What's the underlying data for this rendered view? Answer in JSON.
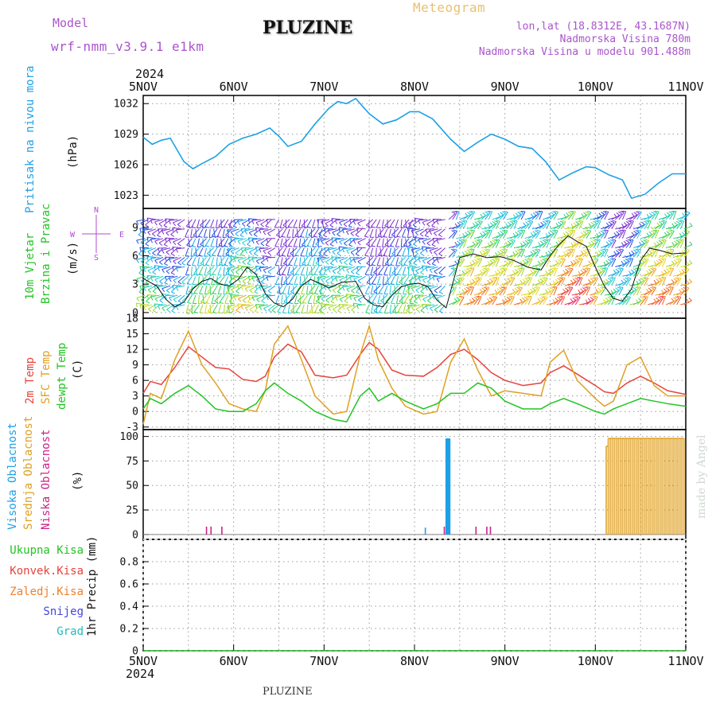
{
  "header": {
    "model_label": "Model",
    "model_name": "wrf-nmm_v3.9.1 e1km",
    "title": "PLUZINE",
    "subtitle": "Meteogram",
    "coords": "lon,lat (18.8312E, 43.1687N)",
    "elevation": "Nadmorska Visina 780m",
    "model_elevation": "Nadmorska Visina u modelu 901.488m",
    "footer_title": "PLUZINE",
    "watermark": "made by Angel",
    "year": "2024"
  },
  "colors": {
    "pressure": "#1ea0e6",
    "temp2m": "#e8433c",
    "sfc_temp": "#e0a020",
    "dewpt": "#22c422",
    "high_cloud": "#1ea0e6",
    "mid_cloud": "#e0a020",
    "low_cloud": "#cc2288",
    "snow": "#4444dd",
    "grad": "#22bbbb",
    "axis": "#000000"
  },
  "chart_data": [
    {
      "panel": "pressure",
      "type": "line",
      "ylabel": [
        "Pritisak na nivou mora",
        "(hPa)"
      ],
      "yticks": [
        1023,
        1026,
        1029,
        1032
      ],
      "ylim": [
        1021.7,
        1032.8
      ],
      "x_days": [
        0,
        0.1,
        0.2,
        0.3,
        0.45,
        0.55,
        0.65,
        0.8,
        0.95,
        1.1,
        1.25,
        1.4,
        1.5,
        1.6,
        1.75,
        1.9,
        2.05,
        2.15,
        2.25,
        2.35,
        2.5,
        2.65,
        2.8,
        2.95,
        3.05,
        3.2,
        3.4,
        3.55,
        3.7,
        3.85,
        4.0,
        4.15,
        4.3,
        4.45,
        4.6,
        4.75,
        4.9,
        5.0,
        5.15,
        5.3,
        5.4,
        5.55,
        5.7,
        5.85,
        6.0
      ],
      "values": [
        1028.7,
        1028.0,
        1028.4,
        1028.6,
        1026.3,
        1025.6,
        1026.1,
        1026.8,
        1028.0,
        1028.6,
        1029.0,
        1029.6,
        1028.8,
        1027.8,
        1028.3,
        1030.0,
        1031.5,
        1032.2,
        1032.0,
        1032.5,
        1031.0,
        1030.0,
        1030.4,
        1031.2,
        1031.2,
        1030.5,
        1028.5,
        1027.3,
        1028.2,
        1029.0,
        1028.5,
        1027.8,
        1027.6,
        1026.3,
        1024.5,
        1025.2,
        1025.8,
        1025.7,
        1025.0,
        1024.5,
        1022.7,
        1023.1,
        1024.2,
        1025.1,
        1025.1
      ]
    },
    {
      "panel": "wind",
      "type": "line",
      "ylabel": [
        "10m Vjetar",
        "Brzina i Pravac",
        "(m/s)"
      ],
      "compass": [
        "N",
        "W",
        "E",
        "S"
      ],
      "yticks": [
        0,
        3,
        6,
        9
      ],
      "ylim": [
        -0.6,
        11
      ],
      "x_days": [
        0,
        0.15,
        0.25,
        0.35,
        0.45,
        0.55,
        0.65,
        0.75,
        0.85,
        0.95,
        1.05,
        1.15,
        1.25,
        1.35,
        1.45,
        1.55,
        1.65,
        1.75,
        1.85,
        1.95,
        2.05,
        2.2,
        2.35,
        2.45,
        2.55,
        2.65,
        2.75,
        2.85,
        2.95,
        3.05,
        3.15,
        3.25,
        3.35,
        3.5,
        3.65,
        3.8,
        3.95,
        4.1,
        4.25,
        4.4,
        4.5,
        4.6,
        4.7,
        4.8,
        4.9,
        5.0,
        5.1,
        5.2,
        5.3,
        5.4,
        5.5,
        5.6,
        5.7,
        5.85,
        6.0
      ],
      "values": [
        3.6,
        2.8,
        1.4,
        0.6,
        1.1,
        2.5,
        3.3,
        3.6,
        3.0,
        2.8,
        3.5,
        4.8,
        4.0,
        2.0,
        1.0,
        0.6,
        1.4,
        2.8,
        3.5,
        3.1,
        2.6,
        3.2,
        3.3,
        1.5,
        0.8,
        0.6,
        1.8,
        2.7,
        3.0,
        3.1,
        2.7,
        1.3,
        0.5,
        5.8,
        6.2,
        5.8,
        5.9,
        5.5,
        4.8,
        4.5,
        6.0,
        7.2,
        8.1,
        7.5,
        7.0,
        4.8,
        2.8,
        1.5,
        1.2,
        2.5,
        5.5,
        6.8,
        6.6,
        6.2,
        6.3
      ]
    },
    {
      "panel": "temperature",
      "type": "line",
      "ylabel": [
        "2m Temp",
        "SFC Temp",
        "dewpt Temp",
        "(C)"
      ],
      "yticks": [
        -3,
        0,
        3,
        6,
        9,
        12,
        15,
        18
      ],
      "ylim": [
        -3.5,
        18
      ],
      "x_days": [
        0,
        0.08,
        0.2,
        0.35,
        0.5,
        0.65,
        0.8,
        0.95,
        1.1,
        1.25,
        1.35,
        1.45,
        1.6,
        1.75,
        1.9,
        2.1,
        2.25,
        2.4,
        2.5,
        2.6,
        2.75,
        2.9,
        3.1,
        3.25,
        3.4,
        3.55,
        3.7,
        3.85,
        4.0,
        4.2,
        4.4,
        4.5,
        4.65,
        4.8,
        5.0,
        5.1,
        5.2,
        5.35,
        5.5,
        5.65,
        5.8,
        6.0
      ],
      "series": [
        {
          "name": "2m Temp",
          "key": "temp2m",
          "values": [
            3.5,
            5.8,
            5.2,
            8.5,
            12.5,
            10.5,
            8.5,
            8.2,
            6.2,
            5.8,
            6.8,
            10.5,
            13.0,
            11.5,
            7.0,
            6.5,
            7.0,
            11.0,
            13.3,
            12.0,
            8.0,
            7.0,
            6.8,
            8.5,
            11.0,
            12.0,
            10.0,
            7.5,
            6.0,
            5.0,
            5.5,
            7.5,
            8.8,
            7.2,
            5.0,
            3.8,
            3.5,
            5.5,
            6.8,
            5.5,
            4.0,
            3.3
          ]
        },
        {
          "name": "SFC Temp",
          "key": "sfc_temp",
          "values": [
            -2.5,
            3.5,
            2.5,
            10.0,
            15.5,
            9.0,
            5.5,
            1.5,
            0.5,
            0.0,
            4.0,
            13.0,
            16.5,
            10.0,
            3.0,
            -0.5,
            0.0,
            11.0,
            16.5,
            10.0,
            4.5,
            1.0,
            -0.5,
            0.0,
            9.5,
            14.0,
            8.0,
            3.0,
            4.0,
            3.5,
            3.0,
            9.5,
            11.8,
            6.0,
            2.5,
            1.0,
            2.0,
            9.0,
            10.5,
            5.0,
            3.0,
            3.0
          ]
        },
        {
          "name": "dewpt Temp",
          "key": "dewpt",
          "values": [
            0.5,
            2.5,
            1.5,
            3.5,
            5.0,
            3.0,
            0.5,
            0.0,
            0.0,
            1.5,
            4.0,
            5.5,
            3.5,
            2.0,
            0.0,
            -1.5,
            -2.0,
            3.0,
            4.5,
            2.0,
            3.5,
            2.0,
            0.5,
            1.5,
            3.5,
            3.5,
            5.5,
            4.5,
            2.0,
            0.5,
            0.5,
            1.5,
            2.5,
            1.5,
            0.0,
            -0.5,
            0.5,
            1.5,
            2.5,
            2.0,
            1.5,
            1.0
          ]
        }
      ]
    },
    {
      "panel": "clouds",
      "type": "bar",
      "ylabel": [
        "Visoka Oblacnost",
        "Srednja Oblacnost",
        "Niska Oblacnost",
        "(%)"
      ],
      "yticks": [
        0,
        25,
        50,
        75,
        100
      ],
      "ylim": [
        -5,
        107
      ],
      "series": [
        {
          "name": "Visoka Oblacnost",
          "key": "high_cloud",
          "x_days": [
            3.12,
            3.36,
            3.38
          ],
          "values": [
            7,
            98,
            98
          ]
        },
        {
          "name": "Niska Oblacnost",
          "key": "low_cloud",
          "x_days": [
            0.7,
            0.75,
            0.87,
            3.33,
            3.68,
            3.8,
            3.84
          ],
          "values": [
            8,
            8,
            8,
            8,
            8,
            8,
            8
          ]
        },
        {
          "name": "Srednja Oblacnost",
          "key": "mid_cloud",
          "x_start": 5.12,
          "x_end": 5.98,
          "count": 40,
          "values_first": 90,
          "values_rest": 98
        }
      ]
    },
    {
      "panel": "precip",
      "type": "line",
      "legend": [
        "Ukupna Kisa",
        "Konvek.Kisa",
        "Zaledj.Kisa",
        "Snijeg",
        "Grad"
      ],
      "ylabel": [
        "1hr Precip (mm)"
      ],
      "yticks": [
        0,
        0.2,
        0.4,
        0.6,
        0.8
      ],
      "ytick_labels": [
        "0",
        "0.2",
        "0.4",
        "0.6",
        "0.8"
      ],
      "ylim": [
        0,
        1.0
      ],
      "values": [
        0,
        0
      ]
    }
  ],
  "xaxis": {
    "labels": [
      "5NOV",
      "6NOV",
      "7NOV",
      "8NOV",
      "9NOV",
      "10NOV",
      "11NOV"
    ]
  }
}
